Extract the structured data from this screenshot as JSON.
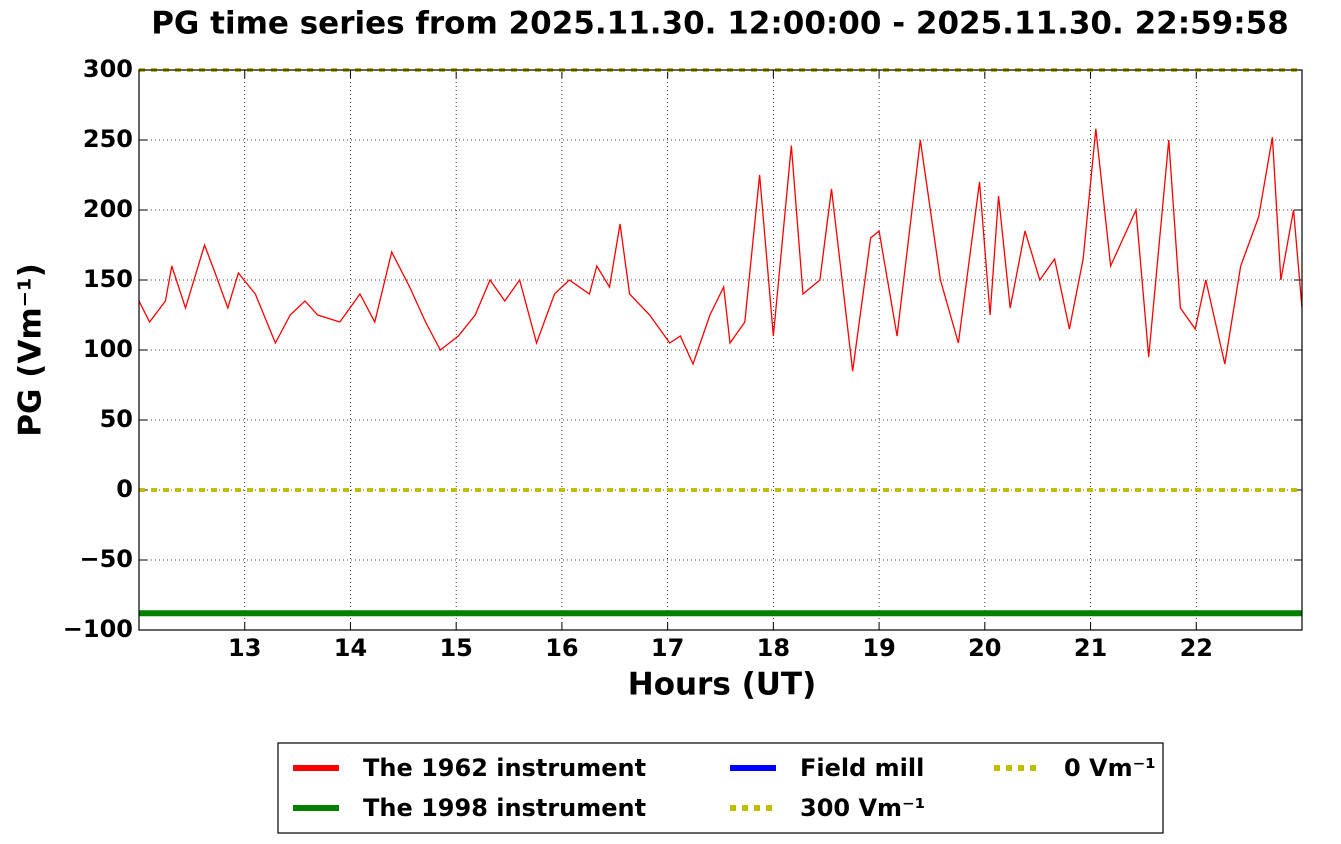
{
  "chart_data": {
    "type": "line",
    "title": "PG time series from 2025.11.30. 12:00:00 - 2025.11.30. 22:59:58",
    "x_label": "Hours (UT)",
    "y_label": "PG (Vm⁻¹)",
    "xlim": [
      12,
      23
    ],
    "xticks": [
      13,
      14,
      15,
      16,
      17,
      18,
      19,
      20,
      21,
      22
    ],
    "ylim": [
      -100,
      300
    ],
    "yticks": [
      {
        "value": -100,
        "label": "−100"
      },
      {
        "value": -50,
        "label": "−50"
      },
      0,
      50,
      100,
      150,
      200,
      250,
      300
    ],
    "grid": true,
    "legend": "below",
    "series": [
      {
        "name": "The 1962 instrument",
        "color": "#ff0000",
        "linestyle": "solid",
        "x": [
          12.0,
          12.1,
          12.25,
          12.31,
          12.44,
          12.62,
          12.72,
          12.84,
          12.94,
          13.1,
          13.29,
          13.43,
          13.57,
          13.69,
          13.9,
          14.09,
          14.23,
          14.39,
          14.56,
          14.71,
          14.85,
          15.02,
          15.18,
          15.32,
          15.46,
          15.6,
          15.76,
          15.93,
          16.07,
          16.26,
          16.33,
          16.45,
          16.55,
          16.64,
          16.83,
          17.02,
          17.12,
          17.24,
          17.4,
          17.53,
          17.59,
          17.73,
          17.87,
          18.0,
          18.17,
          18.28,
          18.44,
          18.55,
          18.75,
          18.92,
          19.0,
          19.17,
          19.39,
          19.58,
          19.75,
          19.95,
          20.05,
          20.13,
          20.24,
          20.38,
          20.52,
          20.66,
          20.8,
          20.93,
          21.05,
          21.19,
          21.43,
          21.55,
          21.74,
          21.85,
          21.99,
          22.09,
          22.27,
          22.42,
          22.59,
          22.72,
          22.8,
          22.92,
          23.0
        ],
        "values": [
          135,
          120,
          135,
          160,
          130,
          175,
          155,
          130,
          155,
          140,
          105,
          125,
          135,
          125,
          120,
          140,
          120,
          170,
          145,
          120,
          100,
          110,
          125,
          150,
          135,
          150,
          105,
          140,
          150,
          140,
          160,
          145,
          190,
          140,
          125,
          105,
          110,
          90,
          125,
          145,
          105,
          120,
          225,
          110,
          246,
          140,
          150,
          215,
          85,
          180,
          185,
          110,
          250,
          150,
          105,
          220,
          125,
          210,
          130,
          185,
          150,
          165,
          115,
          165,
          258,
          160,
          200,
          95,
          250,
          130,
          115,
          150,
          90,
          160,
          195,
          252,
          150,
          200,
          130
        ]
      },
      {
        "name": "The 1998 instrument",
        "color": "#008000",
        "linestyle": "solid",
        "x": [
          12,
          23
        ],
        "values": [
          -88,
          -88
        ]
      },
      {
        "name": "Field mill",
        "color": "#0000ff",
        "linestyle": "solid",
        "x": [],
        "values": []
      },
      {
        "name": "300 Vm⁻¹",
        "color": "#bfbf00",
        "linestyle": "dotted",
        "x": [
          12,
          23
        ],
        "values": [
          300,
          300
        ]
      },
      {
        "name": "0 Vm⁻¹",
        "color": "#bfbf00",
        "linestyle": "dotted",
        "x": [
          12,
          23
        ],
        "values": [
          0,
          0
        ]
      }
    ]
  }
}
